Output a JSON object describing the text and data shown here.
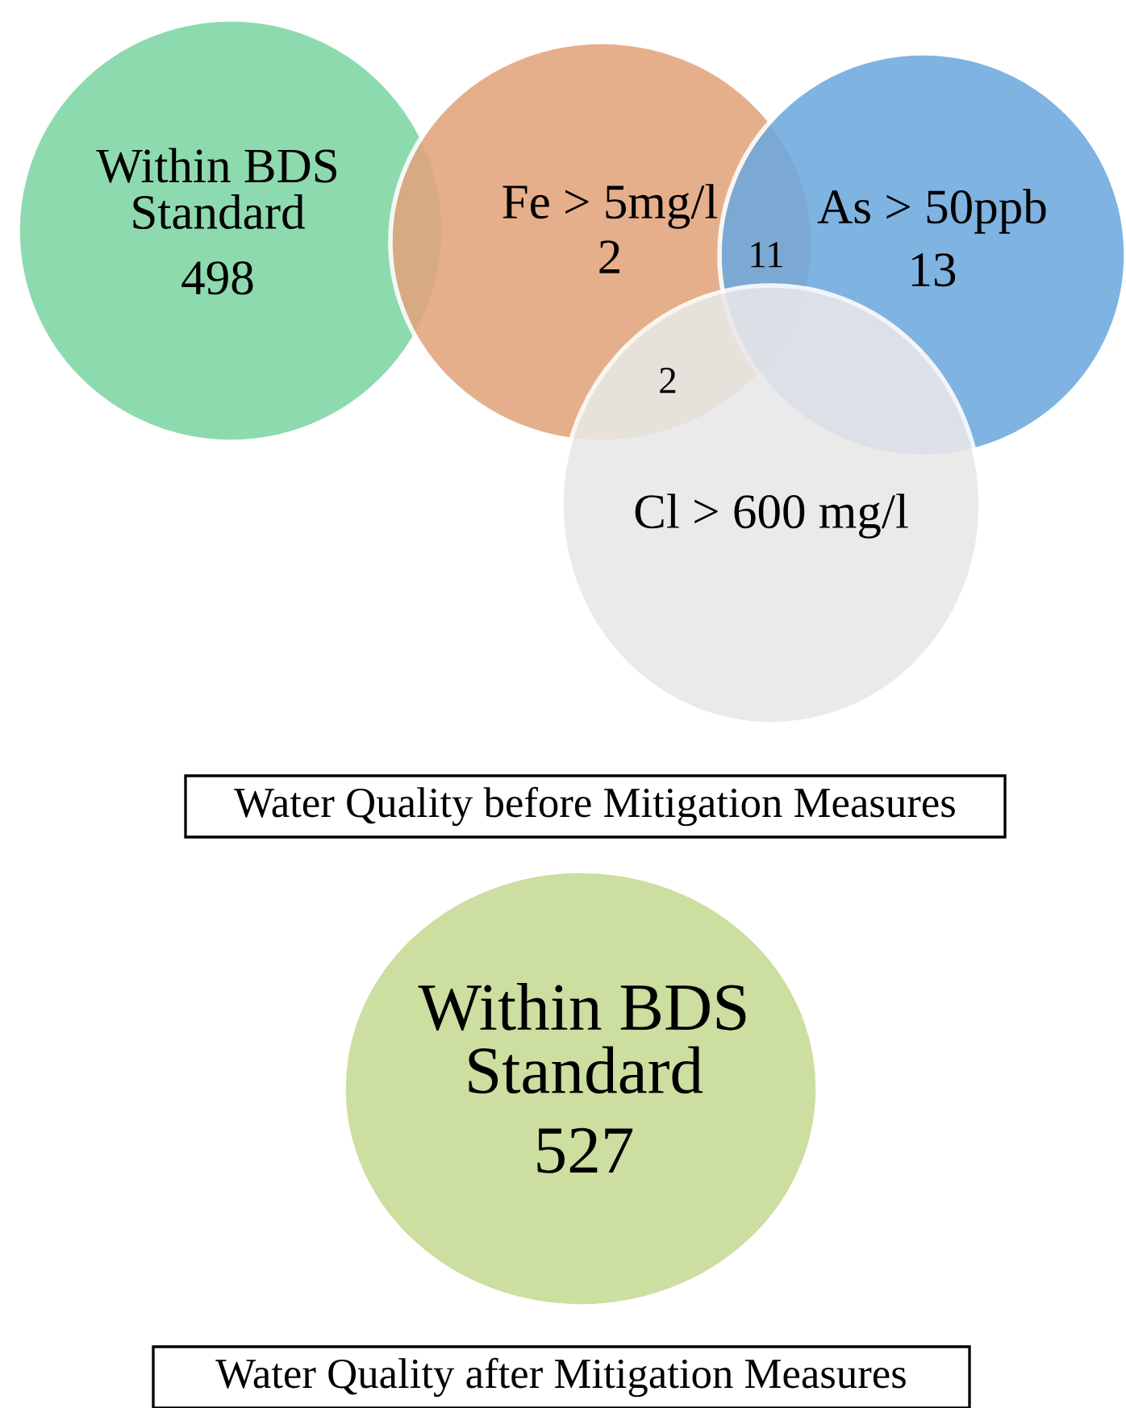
{
  "chart_data": [
    {
      "type": "other",
      "title": "Water Quality before Mitigation Measures",
      "categories": [
        "Within BDS Standard",
        "Fe > 5mg/l",
        "As > 50ppb",
        "Cl > 600 mg/l"
      ],
      "values": [
        498,
        2,
        13,
        null
      ],
      "colors": [
        "#7fd6a4",
        "#e3a47c",
        "#6ea9dd",
        "#e8e8e8"
      ],
      "data_labels": true,
      "annotations": [
        "11",
        "2"
      ]
    },
    {
      "type": "other",
      "title": "Water Quality after Mitigation Measures",
      "categories": [
        "Within BDS Standard"
      ],
      "values": [
        527
      ],
      "colors": [
        "#c6da94"
      ],
      "data_labels": true
    }
  ]
}
